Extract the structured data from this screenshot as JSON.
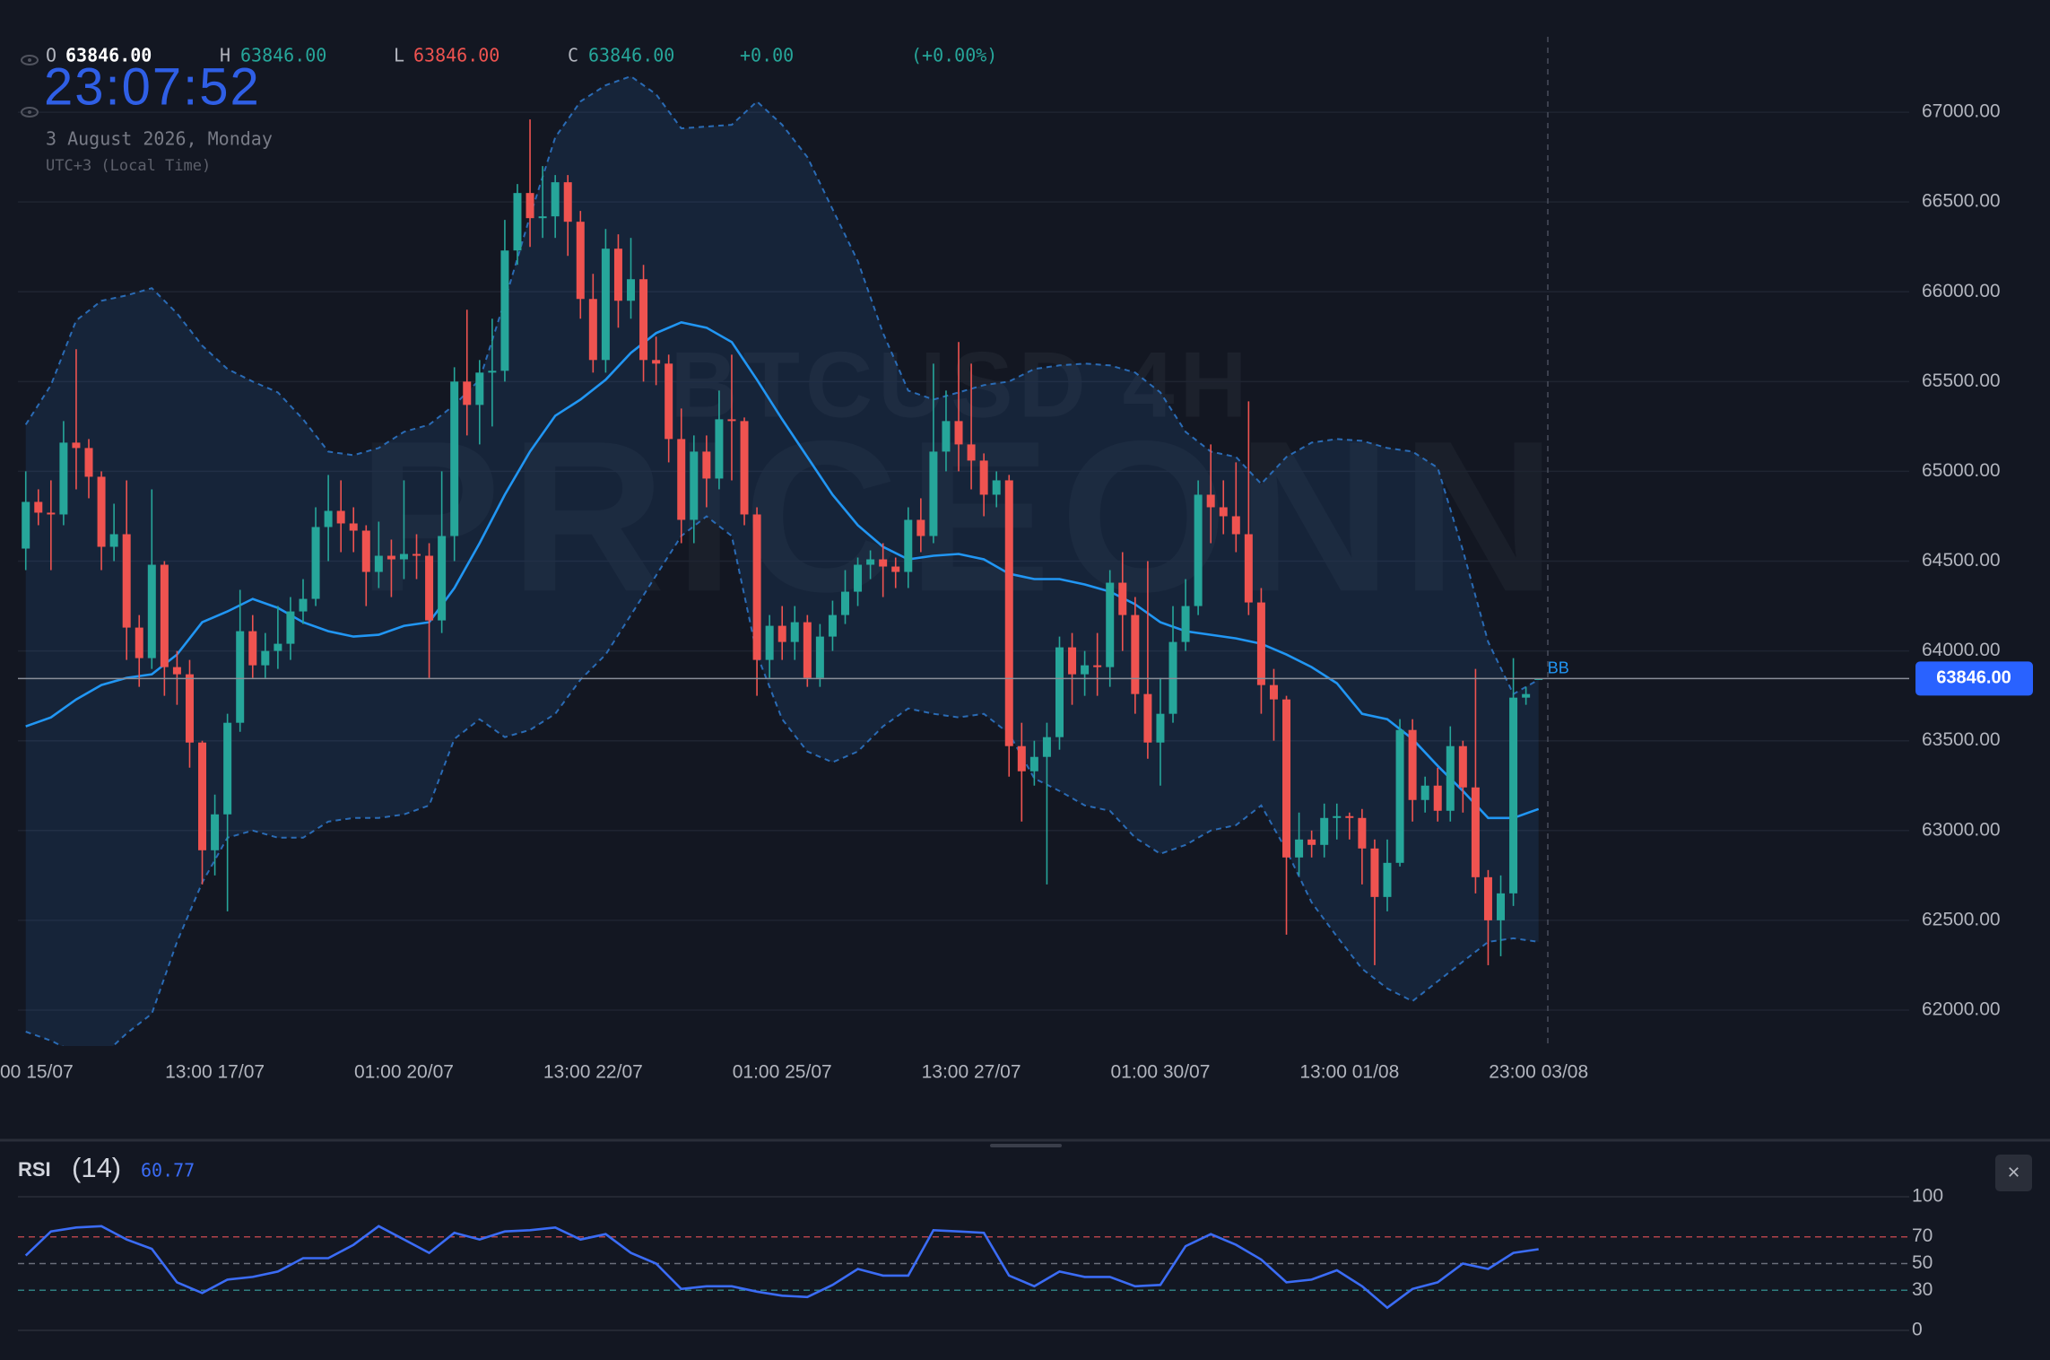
{
  "header": {
    "o_label": "O",
    "open": "63846.00",
    "h_label": "H",
    "high": "63846.00",
    "l_label": "L",
    "low": "63846.00",
    "c_label": "C",
    "close": "63846.00",
    "change": "+0.00",
    "change_pct": "(+0.00%)"
  },
  "clock": {
    "time": "23:07:52",
    "date": "3 August 2026, Monday",
    "timezone": "UTC+3 (Local Time)"
  },
  "watermark": {
    "symbol": "BTCUSD 4H",
    "brand": "PRICEONN"
  },
  "controls": {
    "close": "×"
  },
  "chart_data": [
    {
      "type": "candlestick",
      "xlim": [
        -0.62,
        149.4
      ],
      "ylim": [
        61800,
        67420
      ],
      "up_color": "#26a69a",
      "down_color": "#ef5350",
      "grid": true,
      "yticks": [
        {
          "value": 62000,
          "label": "62000.00"
        },
        {
          "value": 62500,
          "label": "62500.00"
        },
        {
          "value": 63000,
          "label": "63000.00"
        },
        {
          "value": 63500,
          "label": "63500.00"
        },
        {
          "value": 64000,
          "label": "64000.00"
        },
        {
          "value": 64500,
          "label": "64500.00"
        },
        {
          "value": 65000,
          "label": "65000.00"
        },
        {
          "value": 65500,
          "label": "65500.00"
        },
        {
          "value": 66000,
          "label": "66000.00"
        },
        {
          "value": 66500,
          "label": "66500.00"
        },
        {
          "value": 67000,
          "label": "67000.00"
        }
      ],
      "xticks": [
        {
          "value": 0,
          "label": "00 15/07"
        },
        {
          "value": 15,
          "label": "13:00 17/07"
        },
        {
          "value": 30,
          "label": "01:00 20/07"
        },
        {
          "value": 45,
          "label": "13:00 22/07"
        },
        {
          "value": 60,
          "label": "01:00 25/07"
        },
        {
          "value": 75,
          "label": "13:00 27/07"
        },
        {
          "value": 90,
          "label": "01:00 30/07"
        },
        {
          "value": 105,
          "label": "13:00 01/08"
        },
        {
          "value": 120,
          "label": "23:00 03/08"
        }
      ],
      "open": [
        64570,
        64830,
        64770,
        64760,
        65160,
        65130,
        64970,
        64580,
        64650,
        64130,
        63960,
        64480,
        63910,
        63870,
        63490,
        62890,
        63090,
        63600,
        64110,
        63920,
        64000,
        64040,
        64220,
        64290,
        64690,
        64780,
        64710,
        64670,
        64440,
        64530,
        64510,
        64540,
        64530,
        64170,
        64640,
        65500,
        65370,
        65550,
        65560,
        66230,
        66550,
        66410,
        66420,
        66610,
        66390,
        65960,
        65620,
        66240,
        65950,
        66070,
        65620,
        65600,
        65180,
        64730,
        65110,
        64960,
        65290,
        65280,
        64760,
        63950,
        64140,
        64050,
        64160,
        63850,
        64080,
        64200,
        64330,
        64480,
        64510,
        64470,
        64440,
        64730,
        64640,
        65110,
        65280,
        65150,
        65060,
        64870,
        64950,
        63470,
        63330,
        63410,
        63520,
        64020,
        63870,
        63920,
        63910,
        64380,
        64200,
        63760,
        63490,
        63650,
        64050,
        64250,
        64870,
        64800,
        64750,
        64650,
        64270,
        63810,
        63730,
        62850,
        62950,
        62920,
        63070,
        63080,
        63070,
        62900,
        62630,
        62820,
        63560,
        63170,
        63250,
        63110,
        63470,
        63240,
        62740,
        62500,
        62650,
        63740,
        63846
      ],
      "high": [
        65000,
        64900,
        64950,
        65280,
        65680,
        65180,
        65000,
        64820,
        64950,
        64200,
        64900,
        64500,
        64000,
        63950,
        63500,
        63200,
        63650,
        64340,
        64200,
        64100,
        64250,
        64300,
        64400,
        64800,
        64980,
        64950,
        64800,
        64700,
        64720,
        64620,
        64950,
        64650,
        64600,
        65000,
        65580,
        65900,
        65620,
        65850,
        66400,
        66600,
        66960,
        66700,
        66650,
        66650,
        66450,
        66100,
        66350,
        66320,
        66300,
        66150,
        65750,
        65650,
        65350,
        65200,
        65200,
        65450,
        65650,
        65300,
        64800,
        64200,
        64250,
        64250,
        64200,
        64150,
        64280,
        64450,
        64520,
        64560,
        64600,
        64520,
        64800,
        64850,
        65600,
        65450,
        65720,
        65600,
        65100,
        65000,
        64980,
        63600,
        63500,
        63600,
        64080,
        64100,
        64000,
        64100,
        64450,
        64550,
        64300,
        64500,
        63850,
        64250,
        64400,
        64950,
        65150,
        64950,
        65050,
        65390,
        64350,
        63900,
        63750,
        63100,
        63000,
        63150,
        63150,
        63100,
        63120,
        62950,
        62950,
        63620,
        63620,
        63300,
        63350,
        63580,
        63500,
        63900,
        62780,
        62750,
        63960,
        63800,
        63846
      ],
      "low": [
        64450,
        64700,
        64450,
        64700,
        64900,
        64850,
        64450,
        64500,
        63950,
        63800,
        63900,
        63750,
        63700,
        63350,
        62700,
        62750,
        62550,
        63550,
        63850,
        63850,
        63900,
        63950,
        64150,
        64250,
        64500,
        64550,
        64550,
        64250,
        64350,
        64300,
        64400,
        64400,
        63850,
        64100,
        64500,
        65200,
        65150,
        65250,
        65500,
        66150,
        66250,
        66300,
        66300,
        66200,
        65850,
        65550,
        65550,
        65800,
        65850,
        65500,
        65480,
        65050,
        64600,
        64600,
        64800,
        64900,
        64950,
        64700,
        63750,
        63850,
        63950,
        63950,
        63800,
        63800,
        64000,
        64150,
        64250,
        64400,
        64300,
        64350,
        64350,
        64550,
        64600,
        65000,
        65000,
        64900,
        64750,
        64800,
        63300,
        63050,
        63250,
        62700,
        63450,
        63700,
        63750,
        63750,
        63800,
        64000,
        63650,
        63400,
        63250,
        63600,
        64000,
        64200,
        64600,
        64650,
        64550,
        64200,
        63650,
        63500,
        62420,
        62750,
        62850,
        62850,
        62950,
        62950,
        62700,
        62250,
        62550,
        62800,
        63050,
        63100,
        63050,
        63050,
        63100,
        62650,
        62250,
        62300,
        62580,
        63700,
        63846
      ],
      "close": [
        64830,
        64770,
        64760,
        65160,
        65130,
        64970,
        64580,
        64650,
        64130,
        63960,
        64480,
        63910,
        63870,
        63490,
        62890,
        63090,
        63600,
        64110,
        63920,
        64000,
        64040,
        64220,
        64290,
        64690,
        64780,
        64710,
        64670,
        64440,
        64530,
        64510,
        64540,
        64530,
        64170,
        64640,
        65500,
        65370,
        65550,
        65560,
        66230,
        66550,
        66410,
        66420,
        66610,
        66390,
        65960,
        65620,
        66240,
        65950,
        66070,
        65620,
        65600,
        65180,
        64730,
        65110,
        64960,
        65290,
        65280,
        64760,
        63950,
        64140,
        64050,
        64160,
        63850,
        64080,
        64200,
        64330,
        64480,
        64510,
        64470,
        64440,
        64730,
        64640,
        65110,
        65280,
        65150,
        65060,
        64870,
        64950,
        63470,
        63330,
        63410,
        63520,
        64020,
        63870,
        63920,
        63910,
        64380,
        64200,
        63760,
        63490,
        63650,
        64050,
        64250,
        64870,
        64800,
        64750,
        64650,
        64270,
        63810,
        63730,
        62850,
        62950,
        62920,
        63070,
        63080,
        63070,
        62900,
        62630,
        62820,
        63560,
        63170,
        63250,
        63110,
        63470,
        63240,
        62740,
        62500,
        62650,
        63740,
        63760,
        63846
      ],
      "bollinger": {
        "name": "BB",
        "color": "#2196f3",
        "band_color": "#2a6bb5",
        "x": [
          0,
          2,
          4,
          6,
          8,
          10,
          12,
          14,
          16,
          18,
          20,
          22,
          24,
          26,
          28,
          30,
          32,
          34,
          36,
          38,
          40,
          42,
          44,
          46,
          48,
          50,
          52,
          54,
          56,
          58,
          60,
          62,
          64,
          66,
          68,
          70,
          72,
          74,
          76,
          78,
          80,
          82,
          84,
          86,
          88,
          90,
          92,
          94,
          96,
          98,
          100,
          102,
          104,
          106,
          108,
          110,
          112,
          114,
          116,
          118,
          120
        ],
        "upper": [
          65260,
          65480,
          65840,
          65950,
          65980,
          66020,
          65880,
          65700,
          65570,
          65500,
          65440,
          65290,
          65110,
          65090,
          65130,
          65220,
          65260,
          65370,
          65510,
          65950,
          66420,
          66860,
          67060,
          67150,
          67200,
          67100,
          66910,
          66920,
          66930,
          67060,
          66930,
          66750,
          66460,
          66170,
          65770,
          65450,
          65400,
          65440,
          65480,
          65500,
          65570,
          65590,
          65600,
          65590,
          65550,
          65440,
          65220,
          65110,
          65080,
          64930,
          65080,
          65160,
          65180,
          65170,
          65130,
          65110,
          65020,
          64560,
          64050,
          63760,
          63840
        ],
        "middle": [
          63580,
          63630,
          63730,
          63810,
          63850,
          63870,
          63980,
          64160,
          64220,
          64290,
          64240,
          64160,
          64110,
          64080,
          64090,
          64140,
          64160,
          64350,
          64600,
          64870,
          65110,
          65310,
          65400,
          65510,
          65660,
          65770,
          65830,
          65800,
          65720,
          65510,
          65290,
          65080,
          64870,
          64700,
          64580,
          64510,
          64530,
          64540,
          64510,
          64430,
          64400,
          64400,
          64370,
          64330,
          64260,
          64160,
          64110,
          64090,
          64070,
          64040,
          63980,
          63910,
          63820,
          63650,
          63620,
          63510,
          63360,
          63220,
          63070,
          63070,
          63120
        ],
        "lower": [
          61880,
          61830,
          61760,
          61740,
          61870,
          61980,
          62380,
          62710,
          62960,
          63000,
          62960,
          62960,
          63050,
          63070,
          63070,
          63090,
          63140,
          63510,
          63620,
          63520,
          63560,
          63650,
          63840,
          63980,
          64200,
          64420,
          64640,
          64750,
          64640,
          63980,
          63620,
          63440,
          63380,
          63440,
          63580,
          63680,
          63650,
          63630,
          63650,
          63540,
          63290,
          63220,
          63140,
          63110,
          62960,
          62870,
          62920,
          63000,
          63030,
          63140,
          62890,
          62600,
          62410,
          62230,
          62120,
          62050,
          62160,
          62270,
          62380,
          62400,
          62380
        ]
      },
      "last_price": {
        "value": 63846,
        "label": "63846.00"
      }
    },
    {
      "type": "line",
      "title": "RSI",
      "period_label": "(14)",
      "current": 60.77,
      "color": "#3b6cf5",
      "xlim": [
        -0.62,
        149.4
      ],
      "ylim": [
        0,
        100
      ],
      "yticks": [
        0,
        30,
        50,
        70,
        100
      ],
      "levels": [
        70,
        50,
        30
      ],
      "level_colors": [
        "#b2434a",
        "#6b6f7a",
        "#2f7f80"
      ],
      "x": [
        0,
        2,
        4,
        6,
        8,
        10,
        12,
        14,
        16,
        18,
        20,
        22,
        24,
        26,
        28,
        30,
        32,
        34,
        36,
        38,
        40,
        42,
        44,
        46,
        48,
        50,
        52,
        54,
        56,
        58,
        60,
        62,
        64,
        66,
        68,
        70,
        72,
        74,
        76,
        78,
        80,
        82,
        84,
        86,
        88,
        90,
        92,
        94,
        96,
        98,
        100,
        102,
        104,
        106,
        108,
        110,
        112,
        114,
        116,
        118,
        120
      ],
      "values": [
        56,
        74,
        77,
        78,
        68,
        61,
        36,
        28,
        38,
        40,
        44,
        54,
        54,
        64,
        78,
        68,
        58,
        73,
        68,
        74,
        75,
        77,
        68,
        72,
        58,
        50,
        31,
        33,
        33,
        29,
        26,
        25,
        34,
        46,
        41,
        41,
        75,
        74,
        73,
        41,
        33,
        44,
        40,
        40,
        33,
        34,
        63,
        72,
        64,
        53,
        36,
        38,
        45,
        33,
        17,
        31,
        36,
        50,
        46,
        58,
        60.77
      ]
    }
  ]
}
